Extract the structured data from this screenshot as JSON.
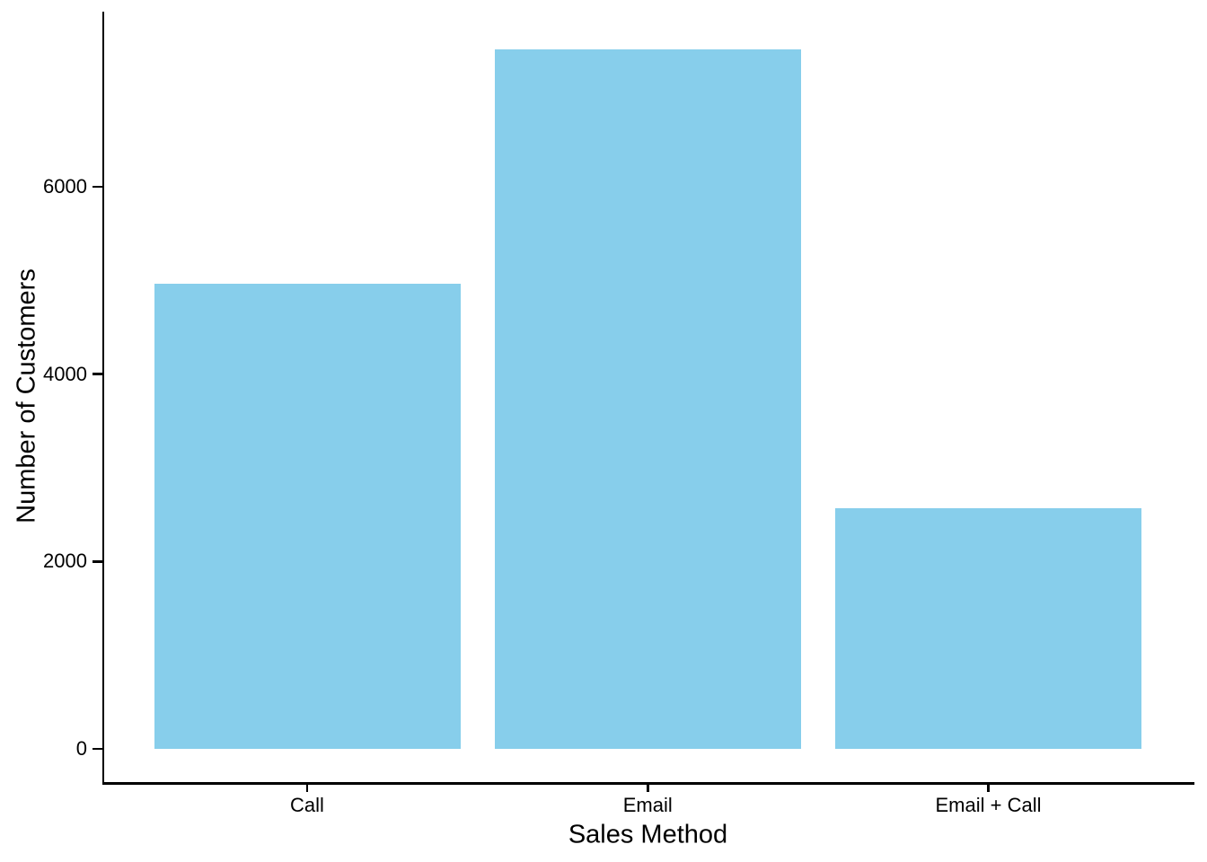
{
  "chart_data": {
    "type": "bar",
    "categories": [
      "Call",
      "Email",
      "Email + Call"
    ],
    "values": [
      4962,
      7466,
      2572
    ],
    "xlabel": "Sales Method",
    "ylabel": "Number of Customers",
    "yticks": [
      0,
      2000,
      4000,
      6000
    ],
    "ylim": [
      -370,
      7870
    ],
    "bar_color": "#87CEEB",
    "axis_color": "#000000",
    "text_color": "#000000",
    "background_color": "#ffffff",
    "grid": false,
    "legend": null
  }
}
